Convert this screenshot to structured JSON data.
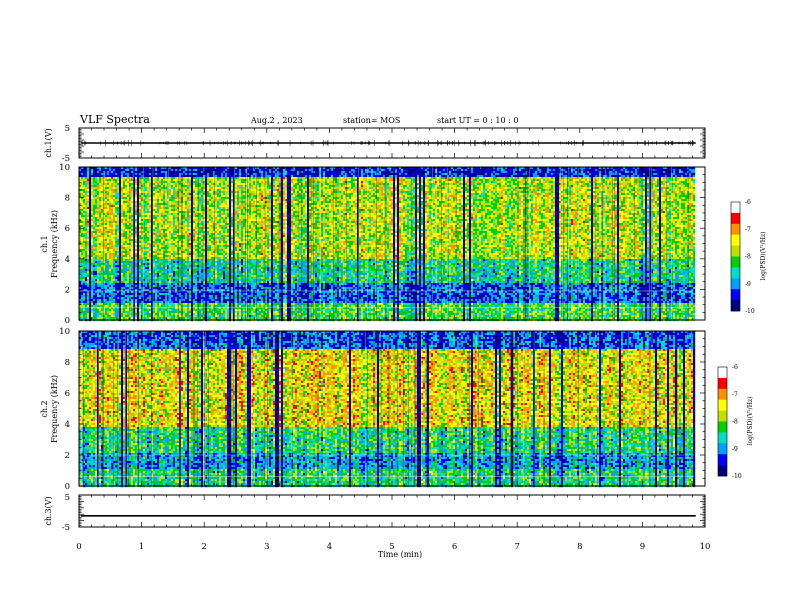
{
  "header": {
    "title": "VLF Spectra",
    "date": "Aug.2  , 2023",
    "station": "station= MOS",
    "start": "start  UT =   0 : 10 : 0"
  },
  "chart_data": [
    {
      "type": "line",
      "name": "ch1-waveform",
      "ylabel": "ch.1(V)",
      "ylim": [
        -5,
        5
      ],
      "yticks": [
        "5",
        "-5"
      ],
      "xlim": [
        0,
        10
      ],
      "y_level": 0
    },
    {
      "type": "heatmap",
      "name": "ch1-spectrogram",
      "ylabel_top": "ch.1",
      "ylabel": "Frequency (kHz)",
      "ylim": [
        0,
        10
      ],
      "yticks": [
        "0",
        "2",
        "4",
        "6",
        "8",
        "10"
      ],
      "xlim": [
        0,
        10
      ],
      "data_end_min": 9.82,
      "colorbar": {
        "label": "log(PSD)(V²/Hz)",
        "range": [
          -10,
          -6
        ],
        "ticks": [
          "-6",
          "-7",
          "-8",
          "-9",
          "-10"
        ]
      }
    },
    {
      "type": "heatmap",
      "name": "ch2-spectrogram",
      "ylabel_top": "ch.2",
      "ylabel": "Frequency (kHz)",
      "ylim": [
        0,
        10
      ],
      "yticks": [
        "0",
        "2",
        "4",
        "6",
        "8",
        "10"
      ],
      "xlim": [
        0,
        10
      ],
      "data_end_min": 9.82,
      "colorbar": {
        "label": "log(PSD)(V²/Hz)",
        "range": [
          -10,
          -6
        ],
        "ticks": [
          "-6",
          "-7",
          "-8",
          "-9",
          "-10"
        ]
      }
    },
    {
      "type": "line",
      "name": "ch3-waveform",
      "ylabel": "ch.3(V)",
      "ylim": [
        -5,
        5
      ],
      "yticks": [
        "5",
        "-5"
      ],
      "xlim": [
        0,
        10
      ],
      "y_level": -1.5
    }
  ],
  "xaxis": {
    "label": "Time (min)",
    "ticks": [
      "0",
      "1",
      "2",
      "3",
      "4",
      "5",
      "6",
      "7",
      "8",
      "9",
      "10"
    ]
  },
  "colors": {
    "scale": [
      "#000080",
      "#0000ff",
      "#00a0ff",
      "#00e0c0",
      "#00d000",
      "#c0e000",
      "#ffff00",
      "#ff9000",
      "#ff0000",
      "#ffffff"
    ]
  }
}
